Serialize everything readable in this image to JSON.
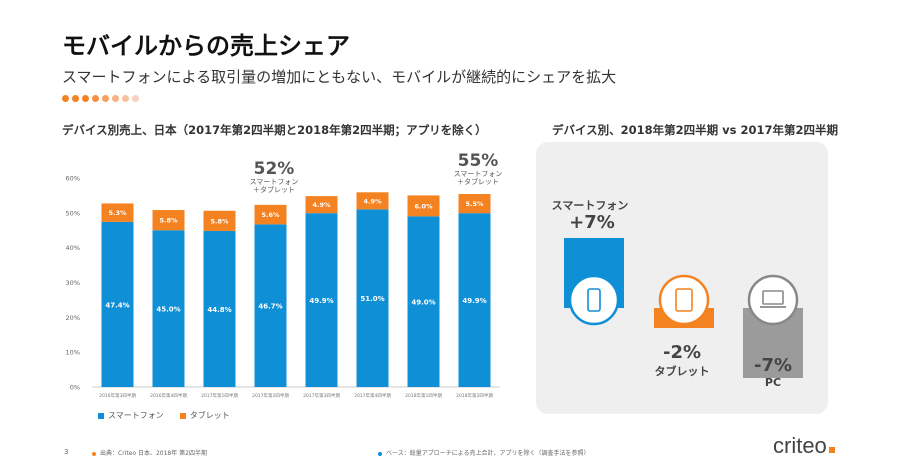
{
  "title": "モバイルからの売上シェア",
  "subtitle": "スマートフォンによる取引量の増加にともない、モバイルが継続的にシェアを拡大",
  "colors": {
    "blue": "#0f8fd6",
    "orange": "#f58220",
    "gray": "#9b9b9b",
    "panel": "#efefef"
  },
  "left_chart_title": "デバイス別売上、日本（2017年第2四半期と2018年第2四半期；アプリを除く）",
  "right_chart_title": "デバイス別、2018年第2四半期 vs 2017年第2四半期",
  "callouts": [
    {
      "pct": "52%",
      "label": "スマートフォン＋タブレット"
    },
    {
      "pct": "55%",
      "label": "スマートフォン＋タブレット"
    }
  ],
  "chart_data": [
    {
      "type": "bar",
      "stacked": true,
      "categories": [
        "2016年第3四半期",
        "2016年第4四半期",
        "2017年第1四半期",
        "2017年第2四半期",
        "2017年第3四半期",
        "2017年第4四半期",
        "2018年第1四半期",
        "2018年第2四半期"
      ],
      "series": [
        {
          "name": "スマートフォン",
          "values": [
            47.4,
            45.0,
            44.8,
            46.7,
            49.9,
            51.0,
            49.0,
            49.9
          ],
          "labels": [
            "47.4%",
            "45.0%",
            "44.8%",
            "46.7%",
            "49.9%",
            "51.0%",
            "49.0%",
            "49.9%"
          ]
        },
        {
          "name": "タブレット",
          "values": [
            5.3,
            5.8,
            5.8,
            5.6,
            4.9,
            4.9,
            6.0,
            5.5
          ],
          "labels": [
            "5.3%",
            "5.8%",
            "5.8%",
            "5.6%",
            "4.9%",
            "4.9%",
            "6.0%",
            "5.5%"
          ]
        }
      ],
      "yticks": [
        "0%",
        "10%",
        "20%",
        "30%",
        "40%",
        "50%",
        "60%"
      ],
      "ylim": [
        0,
        60
      ],
      "grid": false,
      "legend": "bottom-left"
    },
    {
      "type": "bar",
      "categories": [
        "スマートフォン",
        "タブレット",
        "PC"
      ],
      "values": [
        7,
        -2,
        -7
      ],
      "labels": [
        "+7%",
        "-2%",
        "-7%"
      ]
    }
  ],
  "legend": {
    "smartphone": "スマートフォン",
    "tablet": "タブレット"
  },
  "right_labels": {
    "smartphone_name": "スマートフォン",
    "smartphone_pct": "+7%",
    "tablet_pct": "-2%",
    "tablet_name": "タブレット",
    "pc_pct": "-7%",
    "pc_name": "PC"
  },
  "icons": {
    "smartphone": "smartphone-icon",
    "tablet": "tablet-icon",
    "pc": "laptop-icon"
  },
  "footer": {
    "page": "3",
    "source": "出典：Criteo 日本、2018年 第2四半期",
    "base": "ベース：総量アプローチによる売上合計、アプリを除く（調査手法を参照）"
  },
  "logo": "criteo"
}
